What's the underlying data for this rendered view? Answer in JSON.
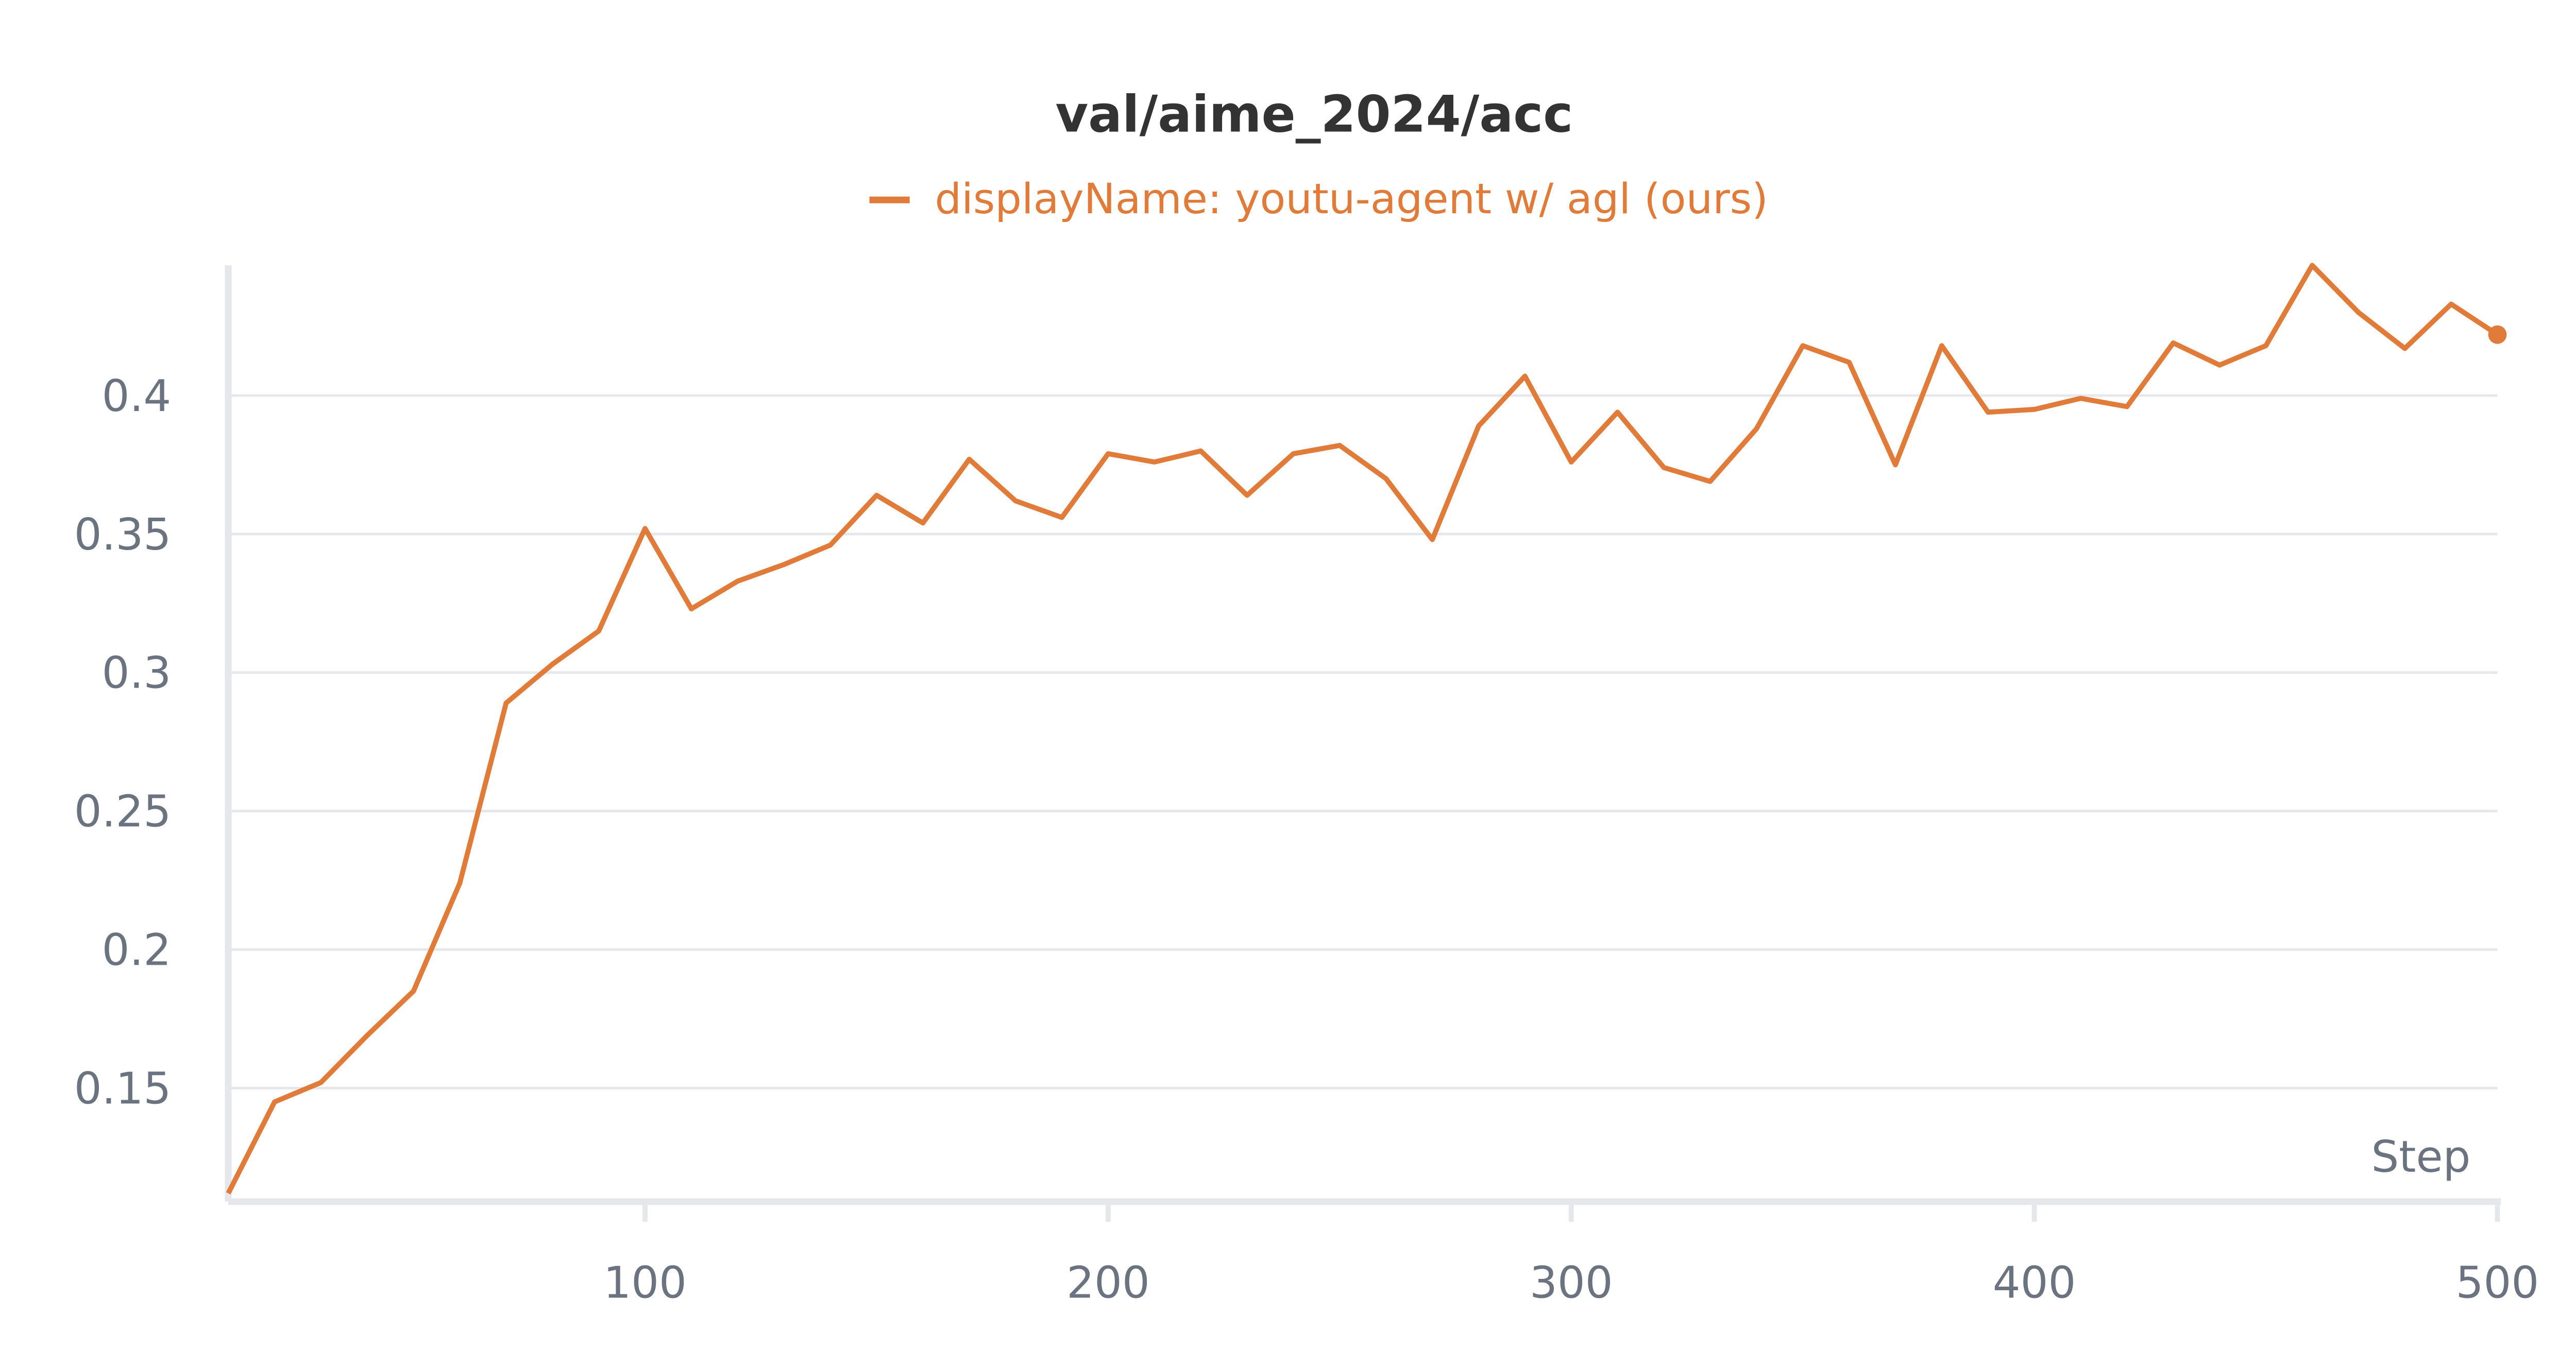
{
  "chart_data": {
    "type": "line",
    "title": "val/aime_2024/acc",
    "xlabel": "Step",
    "x": [
      10,
      20,
      30,
      40,
      50,
      60,
      70,
      80,
      90,
      100,
      110,
      120,
      130,
      140,
      150,
      160,
      170,
      180,
      190,
      200,
      210,
      220,
      230,
      240,
      250,
      260,
      270,
      280,
      290,
      300,
      310,
      320,
      330,
      340,
      350,
      360,
      370,
      380,
      390,
      400,
      410,
      420,
      430,
      440,
      450,
      460,
      470,
      480,
      490,
      500
    ],
    "series": [
      {
        "name": "displayName: youtu-agent w/ agl (ours)",
        "color": "#e07b39",
        "values": [
          0.112,
          0.145,
          0.152,
          0.169,
          0.185,
          0.224,
          0.289,
          0.303,
          0.315,
          0.352,
          0.323,
          0.333,
          0.339,
          0.346,
          0.364,
          0.354,
          0.377,
          0.362,
          0.356,
          0.379,
          0.376,
          0.38,
          0.364,
          0.379,
          0.382,
          0.37,
          0.348,
          0.389,
          0.407,
          0.376,
          0.394,
          0.374,
          0.369,
          0.388,
          0.418,
          0.412,
          0.375,
          0.418,
          0.394,
          0.395,
          0.399,
          0.396,
          0.419,
          0.411,
          0.418,
          0.447,
          0.43,
          0.417,
          0.433,
          0.422
        ]
      }
    ],
    "xlim": [
      10,
      500
    ],
    "ylim": [
      0.109,
      0.447
    ],
    "xticks": [
      100,
      200,
      300,
      400,
      500
    ],
    "yticks": [
      0.15,
      0.2,
      0.25,
      0.3,
      0.35,
      0.4
    ],
    "grid": true
  }
}
